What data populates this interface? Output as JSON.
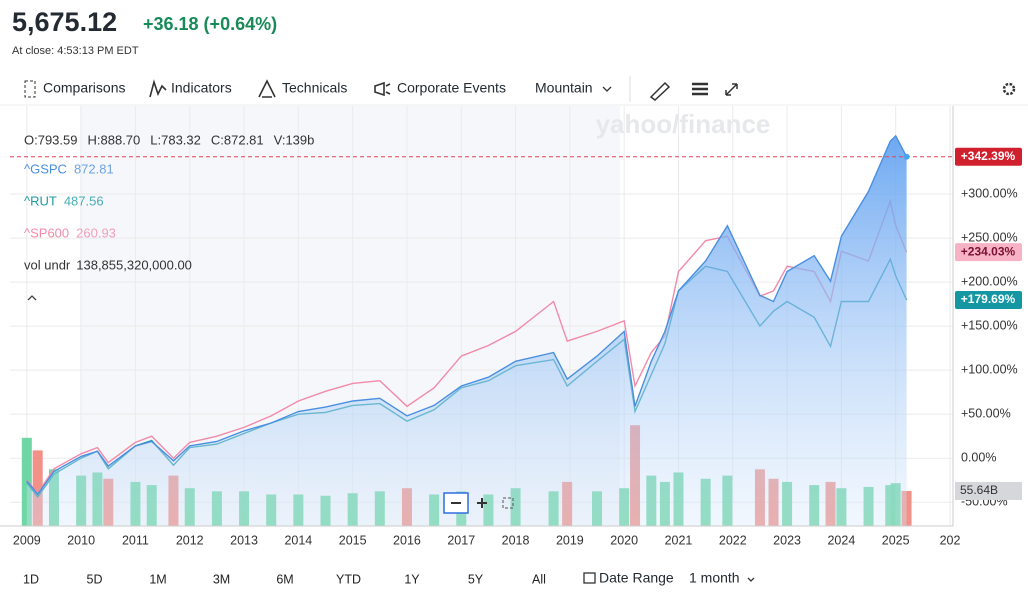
{
  "header": {
    "price": "5,675.12",
    "change": "+36.18 (+0.64%)",
    "close_time": "At close: 4:53:13 PM EDT"
  },
  "toolbar": [
    "Comparisons",
    "Indicators",
    "Technicals",
    "Corporate Events",
    "Mountain"
  ],
  "watermark": "yahoo/finance",
  "ohlc": [
    "O:793.59",
    "H:888.70",
    "L:783.32",
    "C:872.81",
    "V:139b"
  ],
  "chart_data": {
    "type": "line",
    "x": [
      2009.0,
      2009.2,
      2009.5,
      2010.0,
      2010.3,
      2010.5,
      2011.0,
      2011.3,
      2011.7,
      2012.0,
      2012.5,
      2013.0,
      2013.5,
      2014.0,
      2014.5,
      2015.0,
      2015.5,
      2016.0,
      2016.5,
      2017.0,
      2017.5,
      2018.0,
      2018.7,
      2018.95,
      2019.5,
      2020.0,
      2020.2,
      2020.5,
      2020.75,
      2021.0,
      2021.5,
      2021.9,
      2022.5,
      2022.75,
      2023.0,
      2023.5,
      2023.8,
      2024.0,
      2024.5,
      2024.9,
      2025.0,
      2025.2
    ],
    "series": [
      {
        "name": "^GSPC",
        "legend_value": "872.81",
        "color": "#4a8fe0",
        "area": true,
        "end_label": "+342.39%",
        "label_bg": "#d0202e",
        "label_text": "#ffffff",
        "values": [
          -26,
          -41,
          -15,
          2,
          8,
          -9,
          14,
          19,
          -3,
          14,
          19,
          31,
          40,
          53,
          58,
          65,
          68,
          48,
          60,
          82,
          92,
          110,
          120,
          90,
          116,
          144,
          59,
          110,
          144,
          190,
          224,
          264,
          185,
          178,
          212,
          230,
          201,
          252,
          303,
          360,
          366,
          342.39
        ]
      },
      {
        "name": "^RUT",
        "legend_value": "487.56",
        "color": "#1d9aa6",
        "area": false,
        "end_label": "+179.69%",
        "label_bg": "#1597a3",
        "label_text": "#ffffff",
        "values": [
          -28,
          -44,
          -18,
          0,
          8,
          -12,
          14,
          20,
          -8,
          12,
          16,
          28,
          40,
          50,
          52,
          60,
          62,
          42,
          55,
          80,
          88,
          105,
          112,
          82,
          110,
          135,
          53,
          95,
          130,
          190,
          218,
          212,
          150,
          167,
          178,
          160,
          127,
          178,
          178,
          226,
          207,
          179.69
        ]
      },
      {
        "name": "^SP600",
        "legend_value": "260.93",
        "color": "#f28aa9",
        "area": false,
        "end_label": "+234.03%",
        "label_bg": "#f7b3c5",
        "label_text": "#7a1030",
        "values": [
          -25,
          -40,
          -12,
          5,
          12,
          -5,
          18,
          25,
          0,
          18,
          25,
          35,
          48,
          65,
          76,
          85,
          88,
          59,
          80,
          116,
          128,
          144,
          178,
          133,
          144,
          156,
          82,
          120,
          139,
          212,
          247,
          252,
          184,
          190,
          218,
          212,
          178,
          235,
          224,
          292,
          264,
          234.03
        ]
      }
    ],
    "volume": {
      "name": "vol undr",
      "legend_value": "138,855,320,000.00",
      "end_label": "55.64B",
      "up_color": "#5fd39b",
      "down_color": "#f0857b",
      "vlim": [
        0,
        200
      ],
      "values": [
        140,
        120,
        90,
        80,
        85,
        75,
        70,
        65,
        80,
        60,
        55,
        55,
        50,
        50,
        48,
        52,
        55,
        60,
        50,
        55,
        50,
        60,
        55,
        70,
        55,
        60,
        160,
        80,
        70,
        85,
        75,
        80,
        90,
        75,
        70,
        65,
        70,
        60,
        62,
        65,
        68,
        55.64
      ]
    },
    "xlim": [
      2008.69,
      2026
    ],
    "xticks": [
      2009,
      2010,
      2011,
      2012,
      2013,
      2014,
      2015,
      2016,
      2017,
      2018,
      2019,
      2020,
      2021,
      2022,
      2023,
      2024,
      2025,
      {
        "value": 2026,
        "label": "202"
      }
    ],
    "ylim": [
      -77,
      400
    ],
    "yticks": [
      {
        "value": -50,
        "label": "-50.00%"
      },
      {
        "value": 0,
        "label": "0.00%"
      },
      {
        "value": 50,
        "label": "+50.00%"
      },
      {
        "value": 100,
        "label": "+100.00%"
      },
      {
        "value": 150,
        "label": "+150.00%"
      },
      {
        "value": 200,
        "label": "+200.00%"
      },
      {
        "value": 250,
        "label": "+250.00%"
      },
      {
        "value": 300,
        "label": "+300.00%"
      }
    ],
    "grid": true
  },
  "ranges": [
    "1D",
    "5D",
    "1M",
    "3M",
    "6M",
    "YTD",
    "1Y",
    "5Y",
    "All"
  ],
  "date_range": "Date Range",
  "interval": "1 month"
}
